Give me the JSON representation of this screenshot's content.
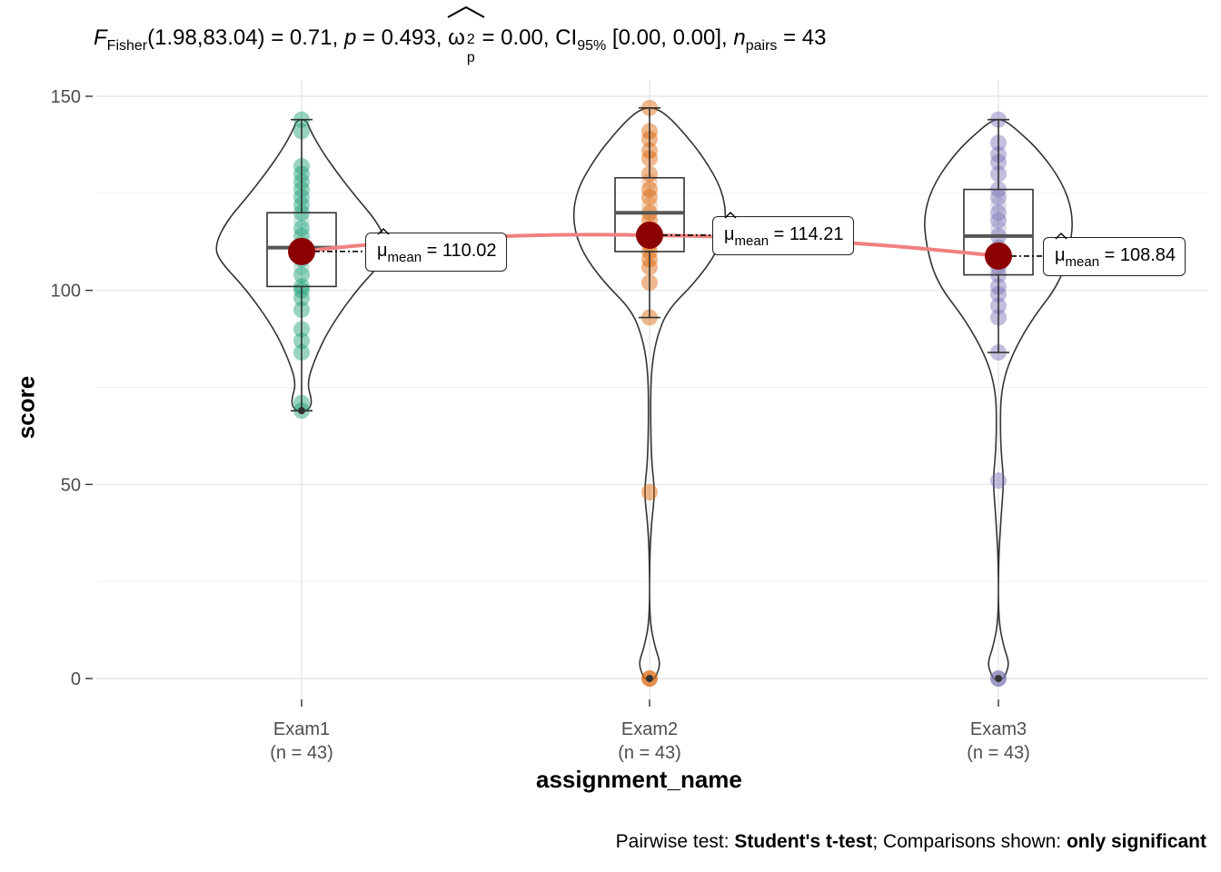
{
  "title": {
    "stat_symbol": "F",
    "stat_subscript": "Fisher",
    "df_text": "(1.98,83.04) = 0.71, ",
    "p_symbol": "p",
    "p_text": " = 0.493, ",
    "effect_symbol": "ω",
    "effect_sup": "2",
    "effect_sub": "p",
    "effect_text": " = 0.00, CI",
    "ci_sub": "95%",
    "ci_text": " [0.00, 0.00], ",
    "n_symbol": "n",
    "n_sub": "pairs",
    "n_text": " = 43"
  },
  "caption": {
    "prefix": "Pairwise test: ",
    "test": "Student's t-test",
    "middle": "; Comparisons shown: ",
    "shown": "only significant"
  },
  "chart_data": {
    "type": "violin",
    "xlabel": "assignment_name",
    "ylabel": "score",
    "ylim": [
      0,
      150
    ],
    "yticks": [
      0,
      50,
      100,
      150
    ],
    "grid": true,
    "categories": [
      "Exam1",
      "Exam2",
      "Exam3"
    ],
    "category_counts": [
      "(n = 43)",
      "(n = 43)",
      "(n = 43)"
    ],
    "colors": [
      "#1B9E77",
      "#D95F02",
      "#7570B3"
    ],
    "mean_color": "#8B0000",
    "mean_line_color": "#F08080",
    "means": [
      110.02,
      114.21,
      108.84
    ],
    "mean_labels": [
      "110.02",
      "114.21",
      "108.84"
    ],
    "mean_label_symbol": "μ",
    "mean_label_subscript": "mean",
    "boxes": [
      {
        "min": 69,
        "q1": 101,
        "median": 111,
        "q3": 120,
        "max": 144
      },
      {
        "min": 93,
        "q1": 110,
        "median": 120,
        "q3": 129,
        "max": 147
      },
      {
        "min": 84,
        "q1": 104,
        "median": 114,
        "q3": 126,
        "max": 144
      }
    ],
    "points": [
      [
        69,
        71,
        84,
        87,
        90,
        95,
        98,
        100,
        101,
        104,
        106,
        108,
        110,
        112,
        114,
        116,
        118,
        120,
        122,
        124,
        126,
        128,
        130,
        132,
        141,
        144
      ],
      [
        0,
        0,
        48,
        93,
        102,
        106,
        108,
        110,
        112,
        114,
        116,
        118,
        120,
        122,
        124,
        126,
        128,
        130,
        134,
        136,
        139,
        141,
        147
      ],
      [
        0,
        0,
        51,
        84,
        93,
        96,
        99,
        101,
        104,
        106,
        108,
        111,
        114,
        116,
        118,
        120,
        122,
        124,
        126,
        130,
        133,
        135,
        138,
        144
      ]
    ]
  }
}
